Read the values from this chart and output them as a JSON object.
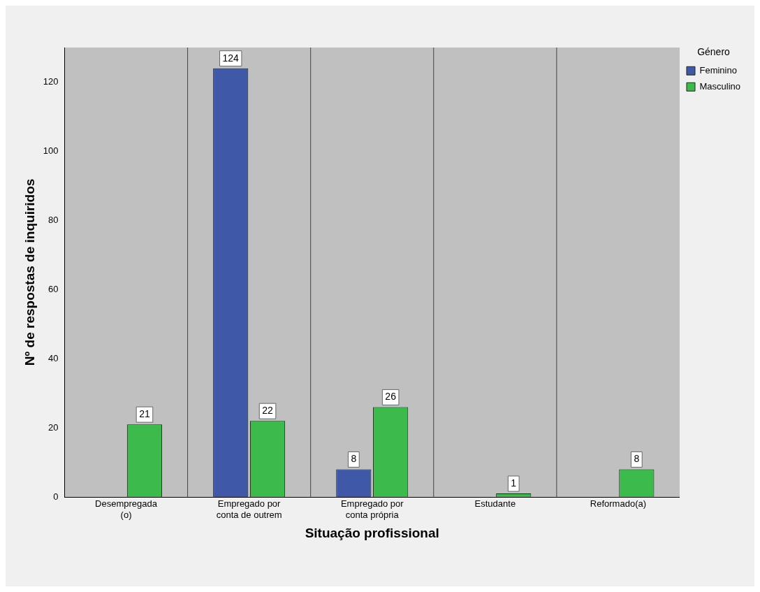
{
  "chart_data": {
    "type": "bar",
    "xlabel": "Situação profissional",
    "ylabel": "Nº de respostas de inquiridos",
    "legend_title": "Género",
    "categories": [
      "Desempregada (o)",
      "Empregado por conta de outrem",
      "Empregado por conta própria",
      "Estudante",
      "Reformado(a)"
    ],
    "series": [
      {
        "name": "Feminino",
        "color": "#3f58a8",
        "values": [
          null,
          124,
          8,
          null,
          null
        ]
      },
      {
        "name": "Masculino",
        "color": "#3cba4c",
        "values": [
          21,
          22,
          26,
          1,
          8
        ]
      }
    ],
    "ylim": [
      0,
      130
    ],
    "yticks": [
      0,
      20,
      40,
      60,
      80,
      100,
      120
    ],
    "grid": false,
    "legend": "top right",
    "data_labels": true
  }
}
